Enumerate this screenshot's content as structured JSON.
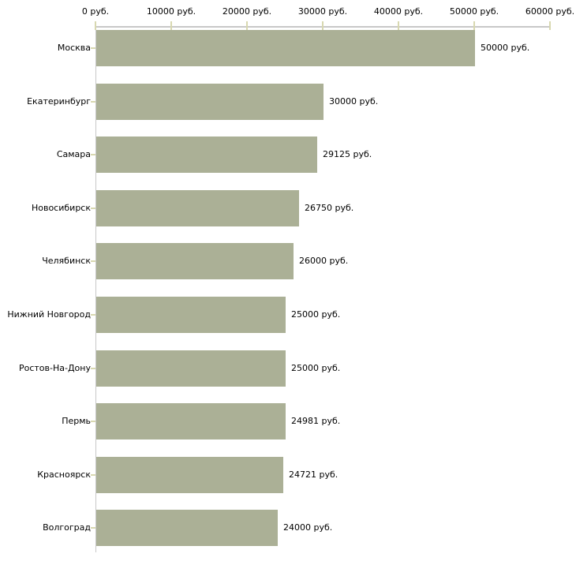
{
  "chart_data": {
    "type": "bar",
    "orientation": "horizontal",
    "title": "",
    "xlabel": "",
    "ylabel": "",
    "grid": false,
    "legend": false,
    "unit": "руб.",
    "categories": [
      "Москва",
      "Екатеринбург",
      "Самара",
      "Новосибирск",
      "Челябинск",
      "Нижний Новгород",
      "Ростов-На-Дону",
      "Пермь",
      "Красноярск",
      "Волгоград"
    ],
    "values": [
      50000,
      30000,
      29125,
      26750,
      26000,
      25000,
      25000,
      24981,
      24721,
      24000
    ],
    "value_labels": [
      "50000 руб.",
      "30000 руб.",
      "29125 руб.",
      "26750 руб.",
      "26000 руб.",
      "25000 руб.",
      "25000 руб.",
      "24981 руб.",
      "24721 руб.",
      "24000 руб."
    ],
    "x_axis": {
      "position": "top",
      "min": 0,
      "max": 60000,
      "tick_interval": 10000,
      "tick_values": [
        0,
        10000,
        20000,
        30000,
        40000,
        50000,
        60000
      ],
      "tick_labels": [
        "0 руб.",
        "10000 руб.",
        "20000 руб.",
        "30000 руб.",
        "40000 руб.",
        "50000 руб.",
        "60000 руб."
      ]
    },
    "colors": {
      "bar": "#abb096",
      "axis_line": "#c8c8c8",
      "tick": "#d8d8b0",
      "text": "#000000",
      "background": "#ffffff"
    }
  }
}
